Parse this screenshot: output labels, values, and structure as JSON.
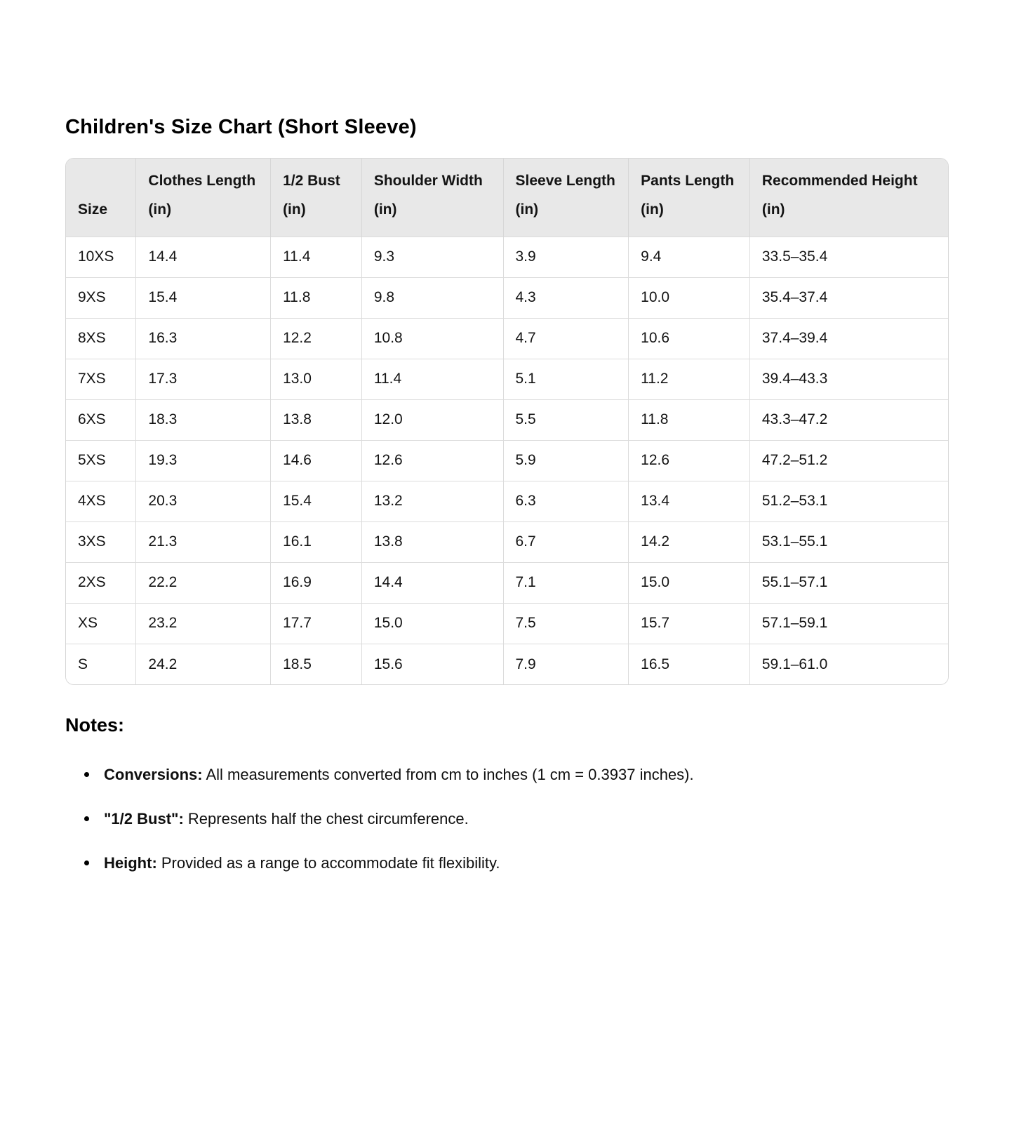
{
  "page": {
    "title": "Children's Size Chart (Short Sleeve)"
  },
  "table": {
    "columns": [
      "Size",
      "Clothes Length (in)",
      "1/2 Bust (in)",
      "Shoulder Width (in)",
      "Sleeve Length (in)",
      "Pants Length (in)",
      "Recommended Height (in)"
    ],
    "rows": [
      [
        "10XS",
        "14.4",
        "11.4",
        "9.3",
        "3.9",
        "9.4",
        "33.5–35.4"
      ],
      [
        "9XS",
        "15.4",
        "11.8",
        "9.8",
        "4.3",
        "10.0",
        "35.4–37.4"
      ],
      [
        "8XS",
        "16.3",
        "12.2",
        "10.8",
        "4.7",
        "10.6",
        "37.4–39.4"
      ],
      [
        "7XS",
        "17.3",
        "13.0",
        "11.4",
        "5.1",
        "11.2",
        "39.4–43.3"
      ],
      [
        "6XS",
        "18.3",
        "13.8",
        "12.0",
        "5.5",
        "11.8",
        "43.3–47.2"
      ],
      [
        "5XS",
        "19.3",
        "14.6",
        "12.6",
        "5.9",
        "12.6",
        "47.2–51.2"
      ],
      [
        "4XS",
        "20.3",
        "15.4",
        "13.2",
        "6.3",
        "13.4",
        "51.2–53.1"
      ],
      [
        "3XS",
        "21.3",
        "16.1",
        "13.8",
        "6.7",
        "14.2",
        "53.1–55.1"
      ],
      [
        "2XS",
        "22.2",
        "16.9",
        "14.4",
        "7.1",
        "15.0",
        "55.1–57.1"
      ],
      [
        "XS",
        "23.2",
        "17.7",
        "15.0",
        "7.5",
        "15.7",
        "57.1–59.1"
      ],
      [
        "S",
        "24.2",
        "18.5",
        "15.6",
        "7.9",
        "16.5",
        "59.1–61.0"
      ]
    ]
  },
  "notes": {
    "heading": "Notes:",
    "items": [
      {
        "label": "Conversions:",
        "text": "All measurements converted from cm to inches (1 cm = 0.3937 inches)."
      },
      {
        "label": "\"1/2 Bust\":",
        "text": "Represents half the chest circumference."
      },
      {
        "label": "Height:",
        "text": "Provided as a range to accommodate fit flexibility."
      }
    ]
  },
  "colors": {
    "header_bg": "#e8e8e8",
    "table_border": "#d7d7d7",
    "row_border": "#dcdcdc",
    "text": "#0f0f0f",
    "background": "#ffffff"
  }
}
